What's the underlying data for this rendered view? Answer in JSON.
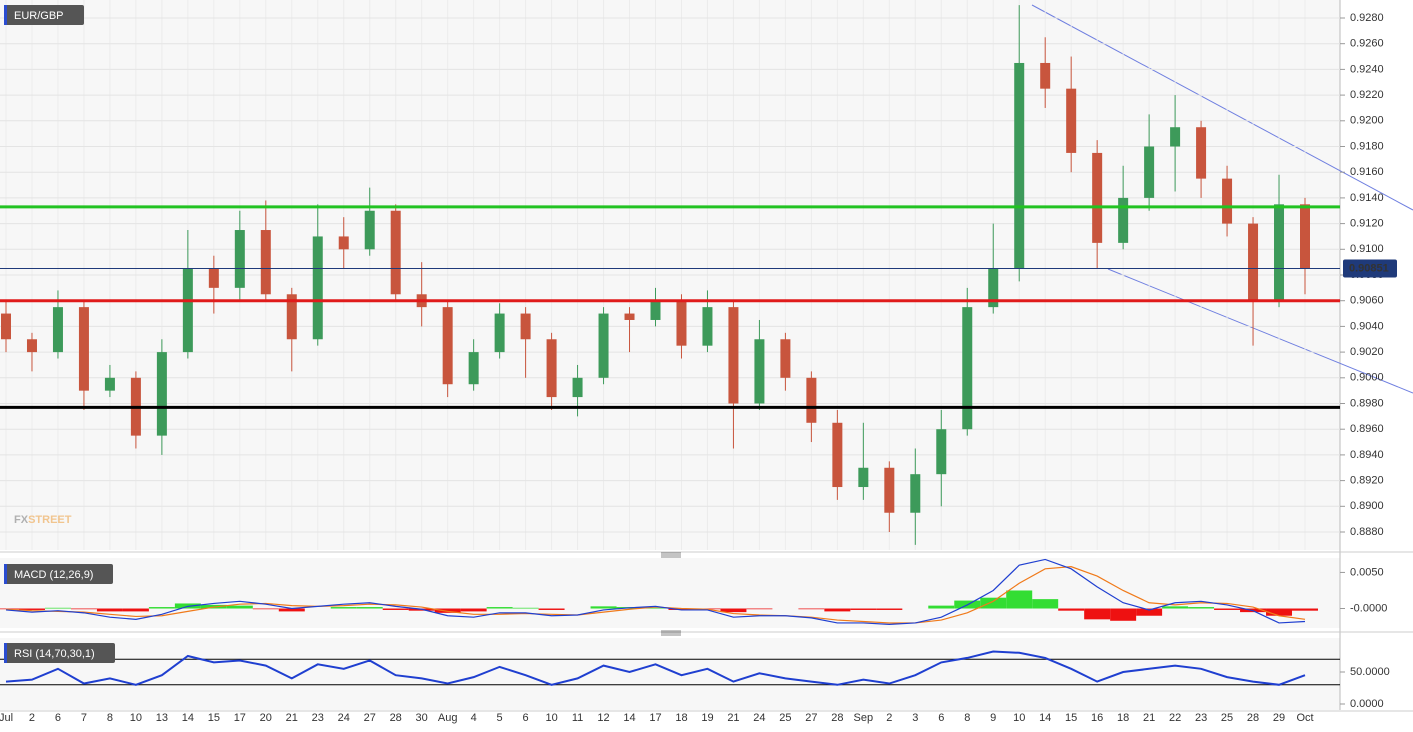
{
  "chart_data": [
    {
      "type": "candlestick",
      "title": "EUR/GBP",
      "categories": [
        "Jul",
        "2",
        "6",
        "7",
        "8",
        "10",
        "13",
        "14",
        "15",
        "17",
        "20",
        "21",
        "23",
        "24",
        "27",
        "28",
        "30",
        "Aug",
        "4",
        "5",
        "6",
        "10",
        "11",
        "12",
        "14",
        "17",
        "18",
        "19",
        "21",
        "24",
        "25",
        "27",
        "28",
        "Sep",
        "2",
        "3",
        "6",
        "8",
        "9",
        "10",
        "14",
        "15",
        "16",
        "18",
        "21",
        "22",
        "23",
        "25",
        "28",
        "29",
        "Oct"
      ],
      "open": [
        0.905,
        0.903,
        0.902,
        0.9055,
        0.899,
        0.9,
        0.8955,
        0.902,
        0.9085,
        0.907,
        0.9115,
        0.9065,
        0.903,
        0.911,
        0.91,
        0.913,
        0.9065,
        0.9055,
        0.8995,
        0.902,
        0.905,
        0.903,
        0.8985,
        0.9,
        0.905,
        0.9045,
        0.906,
        0.9025,
        0.9055,
        0.898,
        0.903,
        0.9,
        0.8965,
        0.8915,
        0.893,
        0.8895,
        0.8925,
        0.896,
        0.9055,
        0.9085,
        0.9245,
        0.9225,
        0.9175,
        0.9105,
        0.914,
        0.918,
        0.9195,
        0.9155,
        0.912,
        0.906,
        0.9135
      ],
      "high": [
        0.906,
        0.9035,
        0.9068,
        0.906,
        0.901,
        0.9005,
        0.903,
        0.9115,
        0.9095,
        0.913,
        0.9138,
        0.907,
        0.9135,
        0.9125,
        0.9148,
        0.9135,
        0.909,
        0.906,
        0.903,
        0.9058,
        0.9055,
        0.9035,
        0.901,
        0.9055,
        0.9055,
        0.907,
        0.9065,
        0.9068,
        0.906,
        0.9045,
        0.9035,
        0.9005,
        0.8975,
        0.8965,
        0.8935,
        0.8945,
        0.8975,
        0.907,
        0.912,
        0.929,
        0.9265,
        0.925,
        0.9185,
        0.9165,
        0.9205,
        0.922,
        0.92,
        0.9165,
        0.9125,
        0.9158,
        0.914
      ],
      "low": [
        0.902,
        0.9005,
        0.9015,
        0.8975,
        0.8985,
        0.8945,
        0.894,
        0.9015,
        0.905,
        0.906,
        0.906,
        0.9005,
        0.9025,
        0.9085,
        0.9095,
        0.906,
        0.904,
        0.8985,
        0.899,
        0.9015,
        0.9,
        0.8975,
        0.897,
        0.8995,
        0.902,
        0.904,
        0.9015,
        0.902,
        0.8945,
        0.8975,
        0.899,
        0.895,
        0.8905,
        0.8905,
        0.888,
        0.887,
        0.89,
        0.8955,
        0.905,
        0.9075,
        0.921,
        0.916,
        0.9085,
        0.91,
        0.913,
        0.9145,
        0.914,
        0.911,
        0.9025,
        0.9055,
        0.9065
      ],
      "close": [
        0.903,
        0.902,
        0.9055,
        0.899,
        0.9,
        0.8955,
        0.902,
        0.9085,
        0.907,
        0.9115,
        0.9065,
        0.903,
        0.911,
        0.91,
        0.913,
        0.9065,
        0.9055,
        0.8995,
        0.902,
        0.905,
        0.903,
        0.8985,
        0.9,
        0.905,
        0.9045,
        0.906,
        0.9025,
        0.9055,
        0.898,
        0.903,
        0.9,
        0.8965,
        0.8915,
        0.893,
        0.8895,
        0.8925,
        0.896,
        0.9055,
        0.9085,
        0.9245,
        0.9225,
        0.9175,
        0.9105,
        0.914,
        0.918,
        0.9195,
        0.9155,
        0.912,
        0.906,
        0.9135,
        0.9085
      ],
      "up_color": "#3d9a5a",
      "down_color": "#c8553d",
      "ylim": [
        0.8866,
        0.9294
      ],
      "yticks": [
        {
          "value": 0.888,
          "label": "0.8880"
        },
        {
          "value": 0.89,
          "label": "0.8900"
        },
        {
          "value": 0.892,
          "label": "0.8920"
        },
        {
          "value": 0.894,
          "label": "0.8940"
        },
        {
          "value": 0.896,
          "label": "0.8960"
        },
        {
          "value": 0.898,
          "label": "0.8980"
        },
        {
          "value": 0.9,
          "label": "0.9000"
        },
        {
          "value": 0.902,
          "label": "0.9020"
        },
        {
          "value": 0.904,
          "label": "0.9040"
        },
        {
          "value": 0.906,
          "label": "0.9060"
        },
        {
          "value": 0.908,
          "label": "0.9080"
        },
        {
          "value": 0.91,
          "label": "0.9100"
        },
        {
          "value": 0.912,
          "label": "0.9120"
        },
        {
          "value": 0.914,
          "label": "0.9140"
        },
        {
          "value": 0.916,
          "label": "0.9160"
        },
        {
          "value": 0.918,
          "label": "0.9180"
        },
        {
          "value": 0.92,
          "label": "0.9200"
        },
        {
          "value": 0.922,
          "label": "0.9220"
        },
        {
          "value": 0.924,
          "label": "0.9240"
        },
        {
          "value": 0.926,
          "label": "0.9260"
        },
        {
          "value": 0.928,
          "label": "0.9280"
        }
      ],
      "grid": true,
      "last_price": 0.90851,
      "last_price_color": "#1f3a7a",
      "levels": [
        {
          "value": 0.9133,
          "color": "#22c322"
        },
        {
          "value": 0.906,
          "color": "#e01b1b"
        },
        {
          "value": 0.8977,
          "color": "#000000"
        }
      ],
      "watermark": [
        "FX",
        "STREET"
      ]
    },
    {
      "type": "macd",
      "title": "MACD (12,26,9)",
      "ylim": [
        -0.0027,
        0.007
      ],
      "yticks": [
        {
          "value": 0.005,
          "label": "0.0050"
        },
        {
          "value": 0,
          "label": "-0.0000"
        }
      ],
      "macd": {
        "color": "#1f3fd0",
        "values": [
          -0.0002,
          -0.0005,
          -0.0003,
          -0.0006,
          -0.0012,
          -0.0015,
          -0.0008,
          0.0003,
          0.0007,
          0.001,
          0.0006,
          0.0,
          0.0003,
          0.0006,
          0.0008,
          0.0003,
          -0.0001,
          -0.001,
          -0.0012,
          -0.0006,
          -0.0006,
          -0.001,
          -0.0009,
          -0.0002,
          0.0001,
          0.0003,
          -0.0002,
          -0.0002,
          -0.0012,
          -0.001,
          -0.001,
          -0.0013,
          -0.002,
          -0.002,
          -0.0022,
          -0.002,
          -0.0012,
          0.0005,
          0.0025,
          0.006,
          0.0068,
          0.0055,
          0.003,
          0.0008,
          -0.0002,
          0.0008,
          0.001,
          0.0005,
          -0.0003,
          -0.002,
          -0.0018
        ]
      },
      "signal": {
        "color": "#f07a1a",
        "values": [
          -0.0001,
          -0.0003,
          -0.0004,
          -0.0005,
          -0.0008,
          -0.0011,
          -0.001,
          -0.0004,
          0.0002,
          0.0006,
          0.0007,
          0.0004,
          0.0003,
          0.0004,
          0.0006,
          0.0005,
          0.0002,
          -0.0004,
          -0.0008,
          -0.0008,
          -0.0007,
          -0.0008,
          -0.0009,
          -0.0005,
          -0.0001,
          0.0002,
          0.0,
          -0.0001,
          -0.0007,
          -0.0009,
          -0.001,
          -0.0012,
          -0.0016,
          -0.0018,
          -0.002,
          -0.002,
          -0.0016,
          -0.0006,
          0.001,
          0.0035,
          0.0055,
          0.0058,
          0.0045,
          0.0025,
          0.0008,
          0.0005,
          0.0008,
          0.0007,
          0.0002,
          -0.001,
          -0.0015
        ]
      },
      "histogram": {
        "up_color": "#33dd33",
        "down_color": "#ee1111",
        "values": [
          -0.0001,
          -0.0002,
          0.0001,
          -0.0001,
          -0.0004,
          -0.0004,
          0.0002,
          0.0007,
          0.0005,
          0.0004,
          -0.0001,
          -0.0004,
          0.0,
          0.0002,
          0.0002,
          -0.0002,
          -0.0003,
          -0.0006,
          -0.0004,
          0.0002,
          0.0001,
          -0.0002,
          0.0,
          0.0003,
          0.0002,
          0.0001,
          -0.0002,
          -0.0001,
          -0.0005,
          -0.0001,
          0.0,
          -0.0001,
          -0.0004,
          -0.0002,
          -0.0002,
          0.0,
          0.0004,
          0.0011,
          0.0015,
          0.0025,
          0.0013,
          -0.0003,
          -0.0015,
          -0.0017,
          -0.001,
          0.0003,
          0.0002,
          -0.0002,
          -0.0005,
          -0.001,
          -0.0003
        ]
      }
    },
    {
      "type": "line",
      "title": "RSI (14,70,30,1)",
      "ylim": [
        0,
        100
      ],
      "yticks": [
        {
          "value": 50,
          "label": "50.0000"
        },
        {
          "value": 0,
          "label": "0.0000"
        }
      ],
      "levels": [
        70,
        30
      ],
      "color": "#1f3fd0",
      "values": [
        35,
        38,
        55,
        32,
        40,
        30,
        45,
        75,
        65,
        68,
        60,
        40,
        62,
        55,
        68,
        45,
        40,
        32,
        42,
        58,
        45,
        30,
        40,
        60,
        50,
        62,
        45,
        55,
        35,
        48,
        40,
        35,
        30,
        38,
        32,
        45,
        65,
        72,
        82,
        80,
        72,
        55,
        35,
        50,
        55,
        60,
        55,
        42,
        35,
        30,
        45
      ]
    }
  ]
}
